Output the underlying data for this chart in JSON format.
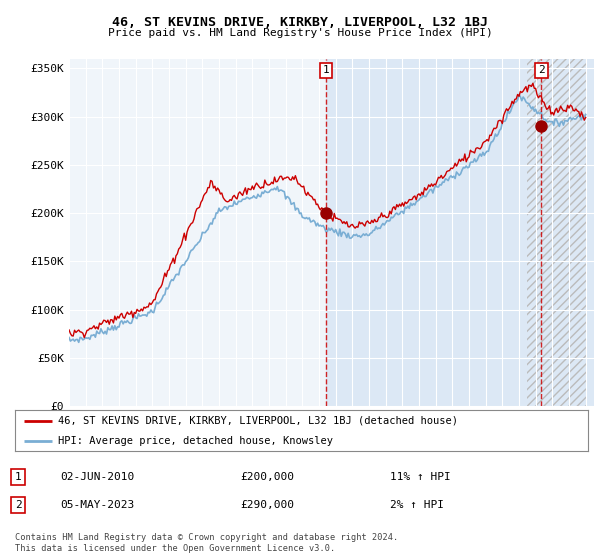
{
  "title": "46, ST KEVINS DRIVE, KIRKBY, LIVERPOOL, L32 1BJ",
  "subtitle": "Price paid vs. HM Land Registry's House Price Index (HPI)",
  "ylabel_ticks": [
    "£0",
    "£50K",
    "£100K",
    "£150K",
    "£200K",
    "£250K",
    "£300K",
    "£350K"
  ],
  "ytick_values": [
    0,
    50000,
    100000,
    150000,
    200000,
    250000,
    300000,
    350000
  ],
  "ylim": [
    0,
    360000
  ],
  "xlim_start": 1995.0,
  "xlim_end": 2026.5,
  "hpi_color": "#aac8e8",
  "hpi_line_color": "#7aaed4",
  "price_color": "#cc0000",
  "marker_color": "#990000",
  "bg_color_left": "#f0f4f8",
  "bg_color_right": "#dce8f4",
  "hatch_color": "#bbbbbb",
  "sale1_x": 2010.42,
  "sale1_y": 200000,
  "sale2_x": 2023.35,
  "sale2_y": 290000,
  "legend_label1": "46, ST KEVINS DRIVE, KIRKBY, LIVERPOOL, L32 1BJ (detached house)",
  "legend_label2": "HPI: Average price, detached house, Knowsley",
  "note1_date": "02-JUN-2010",
  "note1_price": "£200,000",
  "note1_hpi": "11% ↑ HPI",
  "note2_date": "05-MAY-2023",
  "note2_price": "£290,000",
  "note2_hpi": "2% ↑ HPI",
  "footer": "Contains HM Land Registry data © Crown copyright and database right 2024.\nThis data is licensed under the Open Government Licence v3.0."
}
